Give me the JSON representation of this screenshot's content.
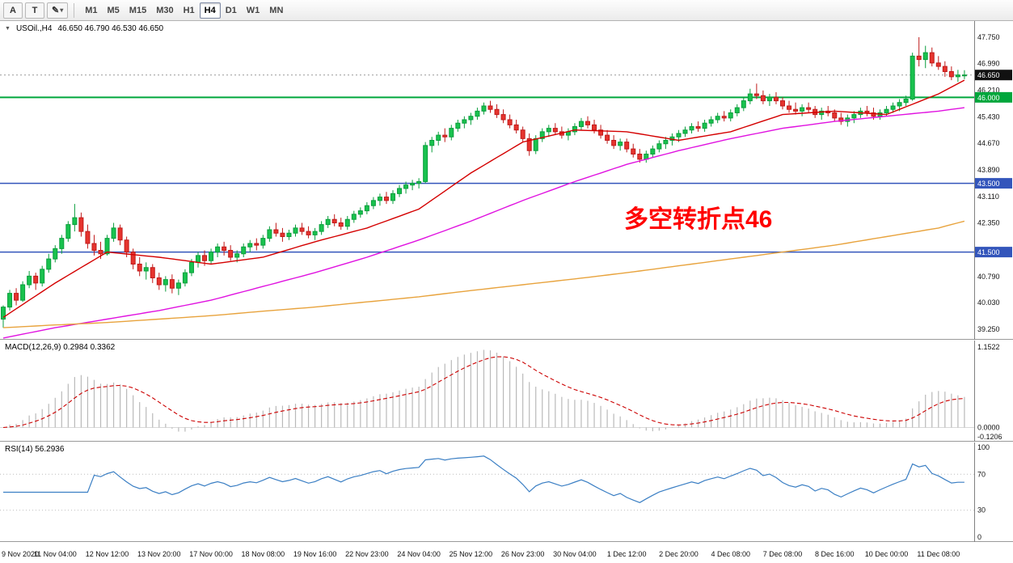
{
  "toolbar": {
    "tools": [
      {
        "label": "A"
      },
      {
        "label": "T"
      }
    ],
    "timeframes": [
      "M1",
      "M5",
      "M15",
      "M30",
      "H1",
      "H4",
      "D1",
      "W1",
      "MN"
    ],
    "active_timeframe": "H4"
  },
  "chart_title": {
    "symbol": "USOil.,H4",
    "ohlc": "46.650 46.790 46.530 46.650"
  },
  "annotation": {
    "text": "多空转折点46",
    "color": "#ff0000"
  },
  "chart_data": {
    "type": "candlestick",
    "symbol": "USOil",
    "timeframe": "H4",
    "price_range": [
      38.95,
      48.22
    ],
    "price_ticks": [
      "47.750",
      "46.990",
      "46.210",
      "45.430",
      "44.670",
      "43.890",
      "43.110",
      "42.350",
      "40.790",
      "40.030",
      "39.250"
    ],
    "current_price": {
      "value": 46.65,
      "label": "46.650",
      "badge_color": "#111111"
    },
    "levels": [
      {
        "price": 46.0,
        "label": "46.000",
        "color": "#00a63c"
      },
      {
        "price": 43.5,
        "label": "43.500",
        "color": "#3355bb"
      },
      {
        "price": 41.5,
        "label": "41.500",
        "color": "#3355bb"
      }
    ],
    "ohlc": [
      [
        39.55,
        39.95,
        39.3,
        39.9
      ],
      [
        39.9,
        40.4,
        39.8,
        40.3
      ],
      [
        40.3,
        40.45,
        39.95,
        40.1
      ],
      [
        40.1,
        40.65,
        40.05,
        40.55
      ],
      [
        40.55,
        40.95,
        40.45,
        40.8
      ],
      [
        40.8,
        40.9,
        40.4,
        40.6
      ],
      [
        40.6,
        41.1,
        40.5,
        41.0
      ],
      [
        41.0,
        41.45,
        40.9,
        41.3
      ],
      [
        41.3,
        41.7,
        41.2,
        41.6
      ],
      [
        41.6,
        42.0,
        41.45,
        41.9
      ],
      [
        41.9,
        42.4,
        41.8,
        42.3
      ],
      [
        42.3,
        42.9,
        42.1,
        42.5
      ],
      [
        42.5,
        42.65,
        41.95,
        42.1
      ],
      [
        42.1,
        42.3,
        41.6,
        41.75
      ],
      [
        41.75,
        42.0,
        41.4,
        41.55
      ],
      [
        41.55,
        41.8,
        41.3,
        41.45
      ],
      [
        41.45,
        42.0,
        41.4,
        41.9
      ],
      [
        41.9,
        42.35,
        41.8,
        42.2
      ],
      [
        42.2,
        42.3,
        41.7,
        41.85
      ],
      [
        41.85,
        41.95,
        41.35,
        41.5
      ],
      [
        41.5,
        41.6,
        41.0,
        41.15
      ],
      [
        41.15,
        41.35,
        40.8,
        40.95
      ],
      [
        40.95,
        41.2,
        40.7,
        41.05
      ],
      [
        41.05,
        41.15,
        40.6,
        40.75
      ],
      [
        40.75,
        40.9,
        40.4,
        40.55
      ],
      [
        40.55,
        40.8,
        40.35,
        40.7
      ],
      [
        40.7,
        40.85,
        40.3,
        40.45
      ],
      [
        40.45,
        40.7,
        40.25,
        40.6
      ],
      [
        40.6,
        41.0,
        40.5,
        40.9
      ],
      [
        40.9,
        41.3,
        40.8,
        41.2
      ],
      [
        41.2,
        41.5,
        41.05,
        41.4
      ],
      [
        41.4,
        41.55,
        41.1,
        41.25
      ],
      [
        41.25,
        41.6,
        41.15,
        41.5
      ],
      [
        41.5,
        41.75,
        41.35,
        41.65
      ],
      [
        41.65,
        41.8,
        41.4,
        41.55
      ],
      [
        41.55,
        41.7,
        41.25,
        41.35
      ],
      [
        41.35,
        41.55,
        41.2,
        41.45
      ],
      [
        41.45,
        41.75,
        41.35,
        41.65
      ],
      [
        41.65,
        41.85,
        41.5,
        41.75
      ],
      [
        41.75,
        41.9,
        41.55,
        41.7
      ],
      [
        41.7,
        42.0,
        41.6,
        41.9
      ],
      [
        41.9,
        42.25,
        41.8,
        42.15
      ],
      [
        42.15,
        42.35,
        41.95,
        42.05
      ],
      [
        42.05,
        42.2,
        41.8,
        41.95
      ],
      [
        41.95,
        42.15,
        41.85,
        42.05
      ],
      [
        42.05,
        42.3,
        41.95,
        42.2
      ],
      [
        42.2,
        42.35,
        42.0,
        42.1
      ],
      [
        42.1,
        42.25,
        41.9,
        42.0
      ],
      [
        42.0,
        42.2,
        41.85,
        42.1
      ],
      [
        42.1,
        42.4,
        42.0,
        42.3
      ],
      [
        42.3,
        42.55,
        42.2,
        42.45
      ],
      [
        42.45,
        42.6,
        42.25,
        42.35
      ],
      [
        42.35,
        42.5,
        42.15,
        42.25
      ],
      [
        42.25,
        42.55,
        42.15,
        42.45
      ],
      [
        42.45,
        42.7,
        42.35,
        42.6
      ],
      [
        42.6,
        42.8,
        42.5,
        42.7
      ],
      [
        42.7,
        42.95,
        42.6,
        42.85
      ],
      [
        42.85,
        43.1,
        42.75,
        43.0
      ],
      [
        43.0,
        43.2,
        42.85,
        43.1
      ],
      [
        43.1,
        43.25,
        42.9,
        43.0
      ],
      [
        43.0,
        43.3,
        42.9,
        43.2
      ],
      [
        43.2,
        43.45,
        43.1,
        43.35
      ],
      [
        43.35,
        43.55,
        43.2,
        43.45
      ],
      [
        43.45,
        43.6,
        43.3,
        43.5
      ],
      [
        43.5,
        43.65,
        43.35,
        43.55
      ],
      [
        43.55,
        44.7,
        43.5,
        44.6
      ],
      [
        44.6,
        44.85,
        44.4,
        44.75
      ],
      [
        44.75,
        45.0,
        44.6,
        44.9
      ],
      [
        44.9,
        45.1,
        44.7,
        44.85
      ],
      [
        44.85,
        45.2,
        44.75,
        45.1
      ],
      [
        45.1,
        45.35,
        45.0,
        45.25
      ],
      [
        45.25,
        45.45,
        45.1,
        45.35
      ],
      [
        45.35,
        45.55,
        45.2,
        45.45
      ],
      [
        45.45,
        45.7,
        45.35,
        45.6
      ],
      [
        45.6,
        45.85,
        45.5,
        45.75
      ],
      [
        45.75,
        45.9,
        45.55,
        45.65
      ],
      [
        45.65,
        45.8,
        45.4,
        45.5
      ],
      [
        45.5,
        45.65,
        45.25,
        45.35
      ],
      [
        45.35,
        45.5,
        45.1,
        45.2
      ],
      [
        45.2,
        45.35,
        44.95,
        45.05
      ],
      [
        45.05,
        45.15,
        44.7,
        44.8
      ],
      [
        44.8,
        44.95,
        44.3,
        44.45
      ],
      [
        44.45,
        44.9,
        44.35,
        44.8
      ],
      [
        44.8,
        45.1,
        44.7,
        45.0
      ],
      [
        45.0,
        45.2,
        44.85,
        45.1
      ],
      [
        45.1,
        45.25,
        44.9,
        45.0
      ],
      [
        45.0,
        45.15,
        44.8,
        44.9
      ],
      [
        44.9,
        45.1,
        44.75,
        45.0
      ],
      [
        45.0,
        45.25,
        44.9,
        45.15
      ],
      [
        45.15,
        45.4,
        45.05,
        45.3
      ],
      [
        45.3,
        45.45,
        45.1,
        45.2
      ],
      [
        45.2,
        45.35,
        44.95,
        45.05
      ],
      [
        45.05,
        45.2,
        44.8,
        44.9
      ],
      [
        44.9,
        45.05,
        44.65,
        44.75
      ],
      [
        44.75,
        44.9,
        44.5,
        44.6
      ],
      [
        44.6,
        44.8,
        44.45,
        44.7
      ],
      [
        44.7,
        44.8,
        44.4,
        44.5
      ],
      [
        44.5,
        44.65,
        44.25,
        44.35
      ],
      [
        44.35,
        44.5,
        44.1,
        44.2
      ],
      [
        44.2,
        44.45,
        44.1,
        44.35
      ],
      [
        44.35,
        44.6,
        44.25,
        44.5
      ],
      [
        44.5,
        44.75,
        44.4,
        44.65
      ],
      [
        44.65,
        44.85,
        44.5,
        44.75
      ],
      [
        44.75,
        44.95,
        44.6,
        44.85
      ],
      [
        44.85,
        45.05,
        44.7,
        44.95
      ],
      [
        44.95,
        45.15,
        44.85,
        45.05
      ],
      [
        45.05,
        45.25,
        44.95,
        45.15
      ],
      [
        45.15,
        45.3,
        45.0,
        45.1
      ],
      [
        45.1,
        45.35,
        45.0,
        45.25
      ],
      [
        45.25,
        45.45,
        45.15,
        45.35
      ],
      [
        45.35,
        45.55,
        45.25,
        45.45
      ],
      [
        45.45,
        45.6,
        45.3,
        45.4
      ],
      [
        45.4,
        45.65,
        45.3,
        45.55
      ],
      [
        45.55,
        45.8,
        45.45,
        45.7
      ],
      [
        45.7,
        46.0,
        45.6,
        45.9
      ],
      [
        45.9,
        46.25,
        45.8,
        46.1
      ],
      [
        46.1,
        46.4,
        45.95,
        46.05
      ],
      [
        46.05,
        46.2,
        45.8,
        45.9
      ],
      [
        45.9,
        46.1,
        45.75,
        46.0
      ],
      [
        46.0,
        46.15,
        45.8,
        45.9
      ],
      [
        45.9,
        46.0,
        45.65,
        45.75
      ],
      [
        45.75,
        45.9,
        45.55,
        45.65
      ],
      [
        45.65,
        45.85,
        45.5,
        45.6
      ],
      [
        45.6,
        45.8,
        45.45,
        45.7
      ],
      [
        45.7,
        45.85,
        45.55,
        45.65
      ],
      [
        45.65,
        45.75,
        45.4,
        45.5
      ],
      [
        45.5,
        45.7,
        45.35,
        45.6
      ],
      [
        45.6,
        45.75,
        45.45,
        45.55
      ],
      [
        45.55,
        45.65,
        45.3,
        45.4
      ],
      [
        45.4,
        45.55,
        45.2,
        45.3
      ],
      [
        45.3,
        45.5,
        45.15,
        45.4
      ],
      [
        45.4,
        45.6,
        45.25,
        45.5
      ],
      [
        45.5,
        45.7,
        45.4,
        45.6
      ],
      [
        45.6,
        45.75,
        45.45,
        45.55
      ],
      [
        45.55,
        45.7,
        45.35,
        45.45
      ],
      [
        45.45,
        45.65,
        45.35,
        45.55
      ],
      [
        45.55,
        45.75,
        45.45,
        45.65
      ],
      [
        45.65,
        45.85,
        45.55,
        45.75
      ],
      [
        45.75,
        45.95,
        45.6,
        45.85
      ],
      [
        45.85,
        46.05,
        45.75,
        45.95
      ],
      [
        45.95,
        47.3,
        45.9,
        47.2
      ],
      [
        47.2,
        47.75,
        46.9,
        47.1
      ],
      [
        47.1,
        47.5,
        46.85,
        47.3
      ],
      [
        47.3,
        47.45,
        46.9,
        47.0
      ],
      [
        47.0,
        47.2,
        46.8,
        46.9
      ],
      [
        46.9,
        47.05,
        46.6,
        46.75
      ],
      [
        46.75,
        46.9,
        46.5,
        46.6
      ],
      [
        46.6,
        46.8,
        46.45,
        46.65
      ],
      [
        46.65,
        46.79,
        46.53,
        46.65
      ]
    ],
    "ma_anchor_indices": [
      0,
      8,
      16,
      24,
      32,
      40,
      48,
      56,
      64,
      72,
      80,
      88,
      96,
      104,
      112,
      120,
      128,
      136,
      144,
      148
    ],
    "moving_averages": [
      {
        "name": "ma-fast-red",
        "color": "#d40000",
        "values": [
          39.6,
          40.6,
          41.5,
          41.35,
          41.15,
          41.35,
          41.8,
          42.2,
          42.75,
          43.8,
          44.7,
          45.05,
          45.0,
          44.75,
          45.0,
          45.5,
          45.6,
          45.5,
          46.1,
          46.5
        ]
      },
      {
        "name": "ma-mid-magenta",
        "color": "#e012e0",
        "values": [
          39.0,
          39.3,
          39.55,
          39.8,
          40.1,
          40.5,
          40.9,
          41.35,
          41.85,
          42.4,
          43.0,
          43.55,
          44.05,
          44.45,
          44.8,
          45.1,
          45.3,
          45.45,
          45.6,
          45.7
        ]
      },
      {
        "name": "ma-slow-orange",
        "color": "#e8a33d",
        "values": [
          39.3,
          39.38,
          39.45,
          39.55,
          39.65,
          39.78,
          39.9,
          40.05,
          40.2,
          40.38,
          40.55,
          40.72,
          40.9,
          41.1,
          41.3,
          41.5,
          41.7,
          41.95,
          42.2,
          42.4
        ]
      }
    ],
    "macd": {
      "label": "MACD(12,26,9) 0.2984 0.3362",
      "fast": 12,
      "slow": 26,
      "signal": 9,
      "current": [
        0.2984,
        0.3362
      ],
      "axis_labels": [
        "1.1522",
        "0.0000",
        "-0.1206"
      ]
    },
    "rsi": {
      "label": "RSI(14) 56.2936",
      "period": 14,
      "current": 56.2936,
      "axis_labels": [
        "100",
        "70",
        "30",
        "0"
      ],
      "levels": [
        70,
        30
      ]
    },
    "time_labels": [
      "9 Nov 2020",
      "11 Nov 04:00",
      "12 Nov 12:00",
      "13 Nov 20:00",
      "17 Nov 00:00",
      "18 Nov 08:00",
      "19 Nov 16:00",
      "22 Nov 23:00",
      "24 Nov 04:00",
      "25 Nov 12:00",
      "26 Nov 23:00",
      "30 Nov 04:00",
      "1 Dec 12:00",
      "2 Dec 20:00",
      "4 Dec 08:00",
      "7 Dec 08:00",
      "8 Dec 16:00",
      "10 Dec 00:00",
      "11 Dec 08:00"
    ]
  }
}
